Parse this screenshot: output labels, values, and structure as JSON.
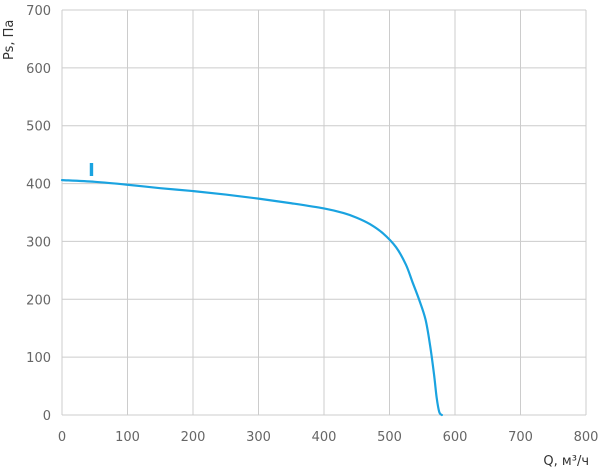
{
  "chart_data": {
    "type": "line",
    "xlabel": "Q, м³/ч",
    "ylabel": "Ps, Па",
    "xlim": [
      0,
      800
    ],
    "ylim": [
      0,
      700
    ],
    "xticks": [
      "0",
      "100",
      "200",
      "300",
      "400",
      "500",
      "600",
      "700",
      "800"
    ],
    "yticks": [
      "0",
      "100",
      "200",
      "300",
      "400",
      "500",
      "600",
      "700"
    ],
    "grid": true,
    "series": [
      {
        "name": "I",
        "color": "#1aa3e0",
        "x": [
          0,
          50,
          100,
          150,
          200,
          250,
          300,
          350,
          400,
          430,
          450,
          470,
          490,
          510,
          525,
          535,
          545,
          555,
          562,
          568,
          572,
          576,
          580
        ],
        "y": [
          406,
          403,
          398,
          392,
          387,
          381,
          374,
          366,
          357,
          349,
          341,
          330,
          314,
          290,
          260,
          230,
          200,
          165,
          120,
          70,
          30,
          5,
          0
        ]
      }
    ],
    "label_point": {
      "x": 45,
      "y": 425
    }
  }
}
